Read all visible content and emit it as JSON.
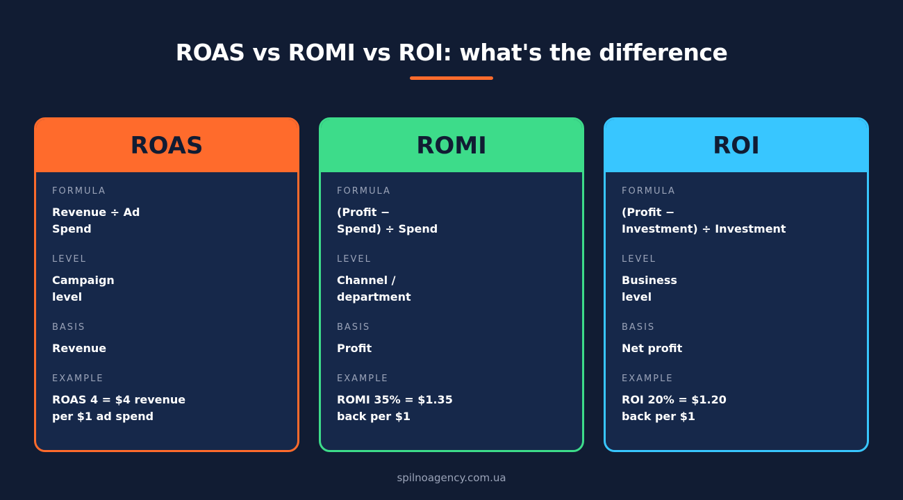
{
  "title": "ROAS vs ROMI vs ROI: what's the difference",
  "cards": [
    {
      "heading": "ROAS",
      "color": "#ff6b2c",
      "fields": [
        {
          "label": "FORMULA",
          "value": "Revenue ÷ Ad\nSpend"
        },
        {
          "label": "LEVEL",
          "value": "Campaign\nlevel"
        },
        {
          "label": "BASIS",
          "value": "Revenue"
        },
        {
          "label": "EXAMPLE",
          "value": "ROAS 4 = $4 revenue\nper $1 ad spend"
        }
      ]
    },
    {
      "heading": "ROMI",
      "color": "#3ddc8a",
      "fields": [
        {
          "label": "FORMULA",
          "value": "(Profit −\nSpend) ÷ Spend"
        },
        {
          "label": "LEVEL",
          "value": "Channel /\ndepartment"
        },
        {
          "label": "BASIS",
          "value": "Profit"
        },
        {
          "label": "EXAMPLE",
          "value": "ROMI 35% = $1.35\nback per $1"
        }
      ]
    },
    {
      "heading": "ROI",
      "color": "#38c6ff",
      "fields": [
        {
          "label": "FORMULA",
          "value": "(Profit −\nInvestment) ÷ Investment"
        },
        {
          "label": "LEVEL",
          "value": "Business\nlevel"
        },
        {
          "label": "BASIS",
          "value": "Net profit"
        },
        {
          "label": "EXAMPLE",
          "value": "ROI 20% = $1.20\nback per $1"
        }
      ]
    }
  ],
  "footer": "spilnoagency.com.ua"
}
